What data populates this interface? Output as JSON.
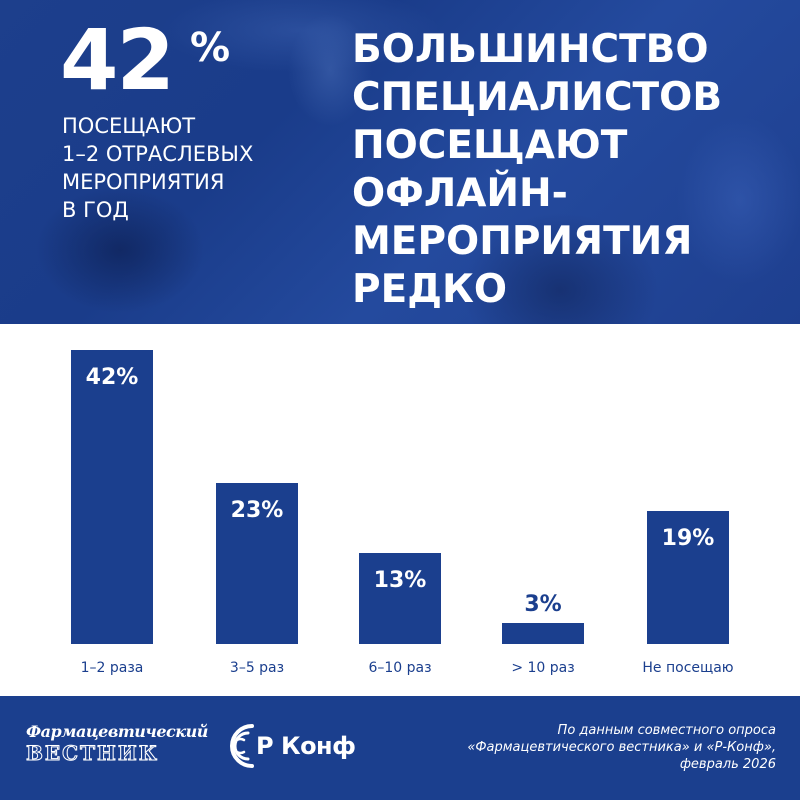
{
  "header": {
    "big_number": "42",
    "big_number_sign": "%",
    "subtitle_lines": [
      "ПОСЕЩАЮТ",
      "1–2 ОТРАСЛЕВЫХ",
      "МЕРОПРИЯТИЯ",
      "В ГОД"
    ],
    "headline_lines": [
      "БОЛЬШИНСТВО",
      "СПЕЦИАЛИСТОВ",
      "ПОСЕЩАЮТ",
      "ОФЛАЙН-",
      "МЕРОПРИЯТИЯ",
      "РЕДКО"
    ]
  },
  "chart_data": {
    "type": "bar",
    "categories": [
      "1–2 раза",
      "3–5 раз",
      "6–10 раз",
      "> 10 раз",
      "Не посещаю"
    ],
    "values": [
      42,
      23,
      13,
      3,
      19
    ],
    "value_labels": [
      "42%",
      "23%",
      "13%",
      "3%",
      "19%"
    ],
    "title": "",
    "xlabel": "",
    "ylabel": "",
    "ylim": [
      0,
      42
    ],
    "grid": false,
    "bar_color": "#1b3f8e"
  },
  "footer": {
    "logo1_top": "Фармацевтический",
    "logo1_bottom": "ВЕСТНИК",
    "logo2": "Р Конф",
    "source_lines": [
      "По данным совместного опроса",
      "«Фармацевтического вестника» и «Р-Конф»,",
      "февраль 2026"
    ]
  },
  "colors": {
    "primary": "#1b3f8e",
    "text_on_primary": "#ffffff"
  }
}
